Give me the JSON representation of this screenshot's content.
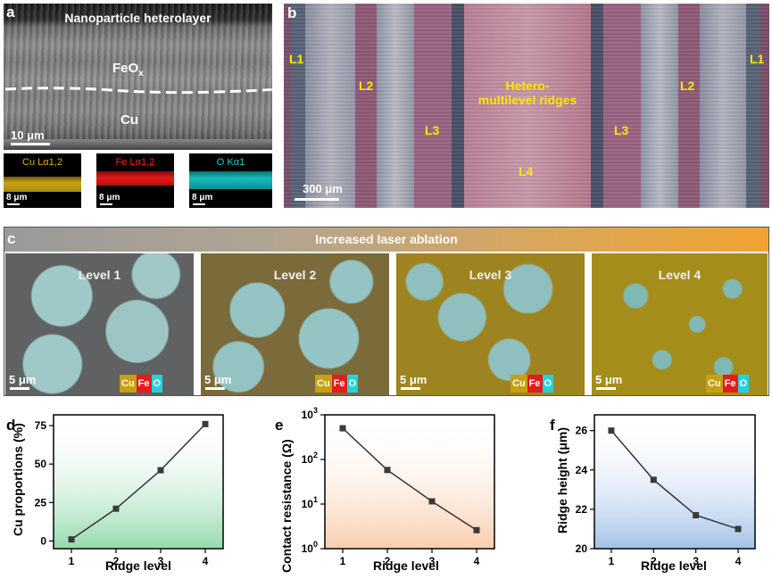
{
  "panel_a": {
    "label": "a",
    "title": "Nanoparticle heterolayer",
    "layer_top": "FeO",
    "layer_top_sub": "x",
    "layer_bottom": "Cu",
    "scale": "10 μm",
    "maps": [
      {
        "caption": "Cu Lα1,2",
        "caption_color": "#d9b21a",
        "band_color": "#c9a214",
        "scale": "8 μm"
      },
      {
        "caption": "Fe Lα1,2",
        "caption_color": "#ff2020",
        "band_color": "#e01818",
        "scale": "8 μm"
      },
      {
        "caption": "O Kα1",
        "caption_color": "#21d0d0",
        "band_color": "#17bcbc",
        "scale": "8 μm"
      }
    ]
  },
  "panel_b": {
    "label": "b",
    "center_label_line1": "Hetero-",
    "center_label_line2": "multilevel ridges",
    "levels": {
      "left_L1": "L1",
      "left_L2": "L2",
      "left_L3": "L3",
      "center_L4": "L4",
      "right_L3": "L3",
      "right_L2": "L2",
      "right_L1": "L1"
    },
    "scale": "300 μm",
    "label_color": "#ffe600"
  },
  "panel_c": {
    "label": "c",
    "banner": "Increased laser ablation",
    "tiles": [
      {
        "title": "Level 1",
        "scale": "5 μm"
      },
      {
        "title": "Level 2",
        "scale": "5 μm"
      },
      {
        "title": "Level 3",
        "scale": "5 μm"
      },
      {
        "title": "Level 4",
        "scale": "5 μm"
      }
    ],
    "legend": {
      "cu": "Cu",
      "fe": "Fe",
      "o": "O",
      "cu_color": "#c8a010",
      "fe_color": "#e41b1b",
      "o_color": "#22d3dd"
    }
  },
  "chart_data": [
    {
      "label": "d",
      "type": "line",
      "x": [
        1,
        2,
        3,
        4
      ],
      "y": [
        1,
        21,
        46,
        76
      ],
      "xlabel": "Ridge level",
      "ylabel": "Cu proportions (%)",
      "xticks": [
        "1",
        "2",
        "3",
        "4"
      ],
      "yticks": [
        "0",
        "25",
        "50",
        "75"
      ],
      "ylim": [
        -5,
        82
      ],
      "yscale": "linear",
      "bg_color": "#3dbd6a"
    },
    {
      "label": "e",
      "type": "line",
      "x": [
        1,
        2,
        3,
        4
      ],
      "y": [
        500,
        58,
        11.5,
        2.6
      ],
      "xlabel": "Ridge level",
      "ylabel": "Contact resistance (Ω)",
      "xticks": [
        "1",
        "2",
        "3",
        "4"
      ],
      "yticks_base": "10",
      "ytick_exponents": [
        "0",
        "1",
        "2",
        "3"
      ],
      "ylim": [
        1,
        1000
      ],
      "yscale": "log",
      "bg_color": "#f5a46a"
    },
    {
      "label": "f",
      "type": "line",
      "x": [
        1,
        2,
        3,
        4
      ],
      "y": [
        26.0,
        23.5,
        21.7,
        21.0
      ],
      "xlabel": "Ridge level",
      "ylabel": "Ridge height (μm)",
      "xticks": [
        "1",
        "2",
        "3",
        "4"
      ],
      "yticks": [
        "20",
        "22",
        "24",
        "26"
      ],
      "ylim": [
        20,
        26.8
      ],
      "yscale": "linear",
      "bg_color": "#5a8fd4"
    }
  ]
}
